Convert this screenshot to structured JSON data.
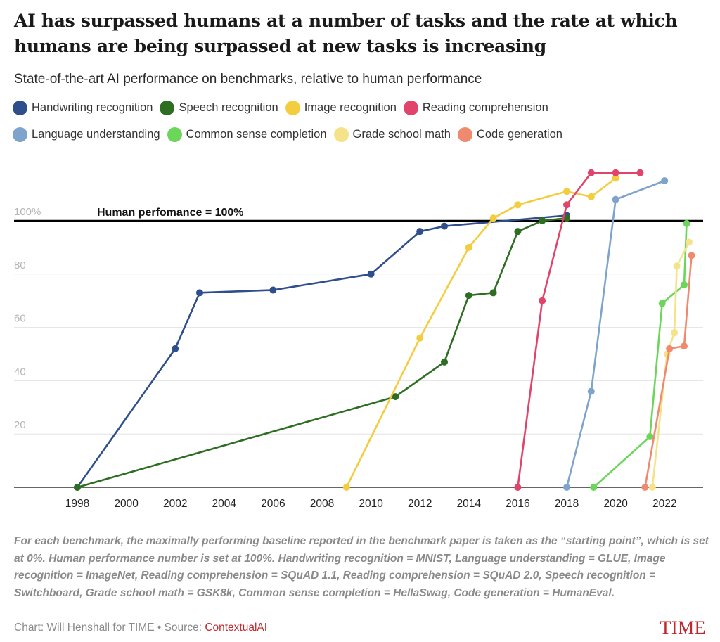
{
  "header": {
    "title": "AI has surpassed humans at a number of tasks and the rate at which humans are being surpassed at new tasks is increasing",
    "subtitle": "State-of-the-art AI performance on benchmarks, relative to human performance"
  },
  "legend": {
    "row1": [
      {
        "label": "Handwriting recognition",
        "color": "#2f4e8c"
      },
      {
        "label": "Speech recognition",
        "color": "#2e6e23"
      },
      {
        "label": "Image recognition",
        "color": "#f4cd3f"
      },
      {
        "label": "Reading comprehension",
        "color": "#e0446a"
      }
    ],
    "row2": [
      {
        "label": "Language understanding",
        "color": "#7ea3cc"
      },
      {
        "label": "Common sense completion",
        "color": "#6cd65a"
      },
      {
        "label": "Grade school math",
        "color": "#f5e38a"
      },
      {
        "label": "Code generation",
        "color": "#ef8a6f"
      }
    ]
  },
  "chart_data": {
    "type": "line",
    "title": "AI has surpassed humans at a number of tasks and the rate at which humans are being surpassed at new tasks is increasing",
    "subtitle": "State-of-the-art AI performance on benchmarks, relative to human performance",
    "xlabel": "",
    "ylabel": "",
    "xlim": [
      1995.5,
      2023.5
    ],
    "ylim": [
      0,
      120
    ],
    "x_ticks": [
      1998,
      2000,
      2002,
      2004,
      2006,
      2008,
      2010,
      2012,
      2014,
      2016,
      2018,
      2020,
      2022
    ],
    "y_ticks": [
      20,
      40,
      60,
      80,
      100
    ],
    "y_tick_labels": [
      "20",
      "40",
      "60",
      "80",
      "100%"
    ],
    "grid": true,
    "legend_position": "top",
    "reference_line": {
      "y": 100,
      "label": "Human perfomance = 100%"
    },
    "series": [
      {
        "name": "Handwriting recognition",
        "color": "#2f4e8c",
        "points": [
          [
            1998,
            0
          ],
          [
            2002,
            52
          ],
          [
            2003,
            73
          ],
          [
            2006,
            74
          ],
          [
            2010,
            80
          ],
          [
            2012,
            96
          ],
          [
            2013,
            98
          ],
          [
            2018,
            102
          ]
        ]
      },
      {
        "name": "Speech recognition",
        "color": "#2e6e23",
        "points": [
          [
            1998,
            0
          ],
          [
            2011,
            34
          ],
          [
            2013,
            47
          ],
          [
            2014,
            72
          ],
          [
            2015,
            73
          ],
          [
            2016,
            96
          ],
          [
            2017,
            100
          ],
          [
            2018,
            101
          ]
        ]
      },
      {
        "name": "Image recognition",
        "color": "#f4cd3f",
        "points": [
          [
            2009,
            0
          ],
          [
            2012,
            56
          ],
          [
            2014,
            90
          ],
          [
            2015,
            101
          ],
          [
            2016,
            106
          ],
          [
            2018,
            111
          ],
          [
            2019,
            109
          ],
          [
            2020,
            116
          ]
        ]
      },
      {
        "name": "Reading comprehension",
        "color": "#e0446a",
        "points": [
          [
            2016,
            0
          ],
          [
            2017,
            70
          ],
          [
            2018,
            106
          ],
          [
            2019,
            118
          ],
          [
            2020,
            118
          ],
          [
            2021,
            118
          ]
        ]
      },
      {
        "name": "Language understanding",
        "color": "#7ea3cc",
        "points": [
          [
            2018,
            0
          ],
          [
            2019,
            36
          ],
          [
            2020,
            108
          ],
          [
            2022,
            115
          ]
        ]
      },
      {
        "name": "Common sense completion",
        "color": "#6cd65a",
        "points": [
          [
            2019.1,
            0
          ],
          [
            2021.4,
            19
          ],
          [
            2021.9,
            69
          ],
          [
            2022.8,
            76
          ],
          [
            2022.9,
            99
          ]
        ]
      },
      {
        "name": "Grade school math",
        "color": "#f5e38a",
        "points": [
          [
            2021.5,
            0
          ],
          [
            2022.1,
            50
          ],
          [
            2022.4,
            58
          ],
          [
            2022.5,
            83
          ],
          [
            2023,
            92
          ]
        ]
      },
      {
        "name": "Code generation",
        "color": "#ef8a6f",
        "points": [
          [
            2021.2,
            0
          ],
          [
            2022.2,
            52
          ],
          [
            2022.8,
            53
          ],
          [
            2023.1,
            87
          ]
        ]
      }
    ]
  },
  "footer": {
    "note": "For each benchmark, the maximally performing baseline reported in the benchmark paper is taken as the “starting point”, which is set at 0%. Human performance number is set at 100%. Handwriting recognition = MNIST, Language understanding = GLUE, Image recognition = ImageNet, Reading comprehension = SQuAD 1.1, Reading comprehension = SQuAD 2.0, Speech recognition = Switchboard, Grade school math = GSK8k, Common sense completion = HellaSwag, Code generation = HumanEval.",
    "credit_prefix": "Chart: Will Henshall for TIME • Source: ",
    "source_link": "ContextualAI",
    "brand": "TIME"
  }
}
